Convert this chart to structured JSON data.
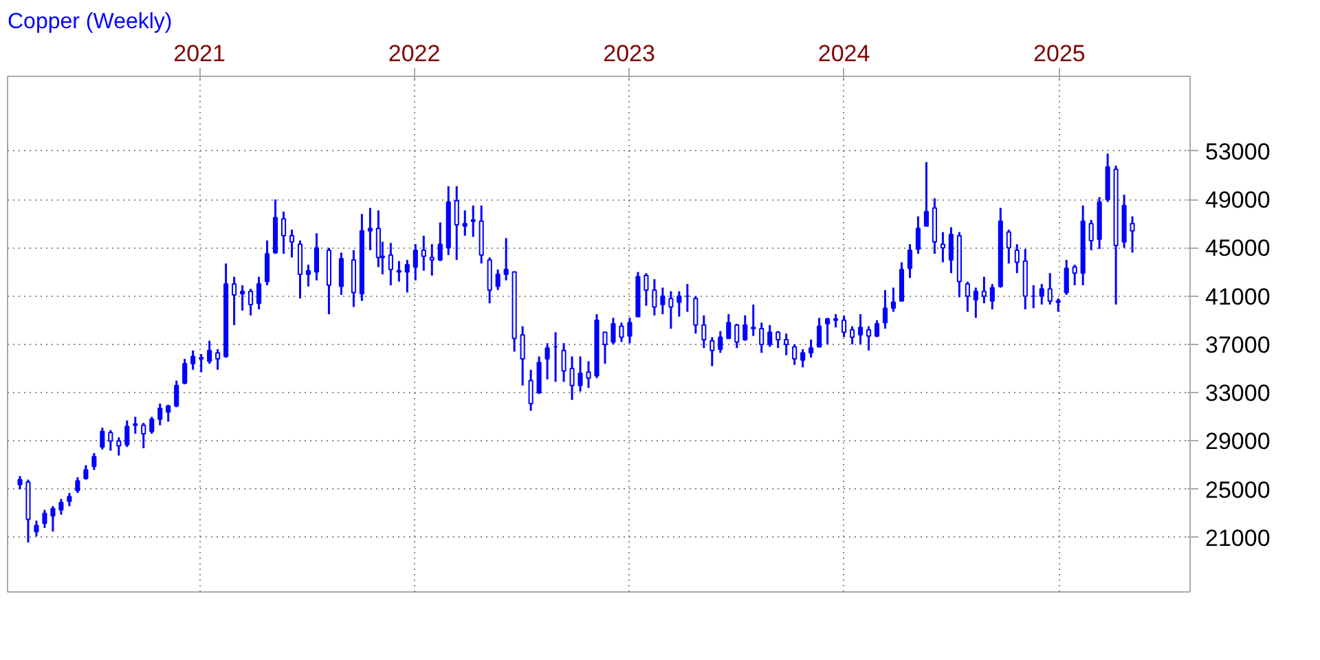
{
  "chart_data": {
    "type": "candlestick",
    "title": "Copper (Weekly)",
    "color": "#0000ff",
    "grid": true,
    "xlim": [
      "2020-02-10",
      "2025-08-11"
    ],
    "ylim": [
      16500,
      59200
    ],
    "xticks": [
      {
        "value": "2021-01-01",
        "label": "2021"
      },
      {
        "value": "2022-01-01",
        "label": "2022"
      },
      {
        "value": "2023-01-01",
        "label": "2023"
      },
      {
        "value": "2024-01-01",
        "label": "2024"
      },
      {
        "value": "2025-01-01",
        "label": "2025"
      }
    ],
    "yticks": [
      21000,
      25000,
      29000,
      33000,
      37000,
      41000,
      45000,
      49000,
      53000
    ],
    "x": [
      "2020-03-02",
      "2020-03-16",
      "2020-03-30",
      "2020-04-13",
      "2020-04-27",
      "2020-05-11",
      "2020-05-25",
      "2020-06-08",
      "2020-06-22",
      "2020-07-06",
      "2020-07-20",
      "2020-08-03",
      "2020-08-17",
      "2020-08-31",
      "2020-09-14",
      "2020-09-28",
      "2020-10-12",
      "2020-10-26",
      "2020-11-09",
      "2020-11-23",
      "2020-12-07",
      "2020-12-21",
      "2021-01-04",
      "2021-01-18",
      "2021-02-01",
      "2021-02-15",
      "2021-03-01",
      "2021-03-15",
      "2021-03-29",
      "2021-04-12",
      "2021-04-26",
      "2021-05-10",
      "2021-05-24",
      "2021-06-07",
      "2021-06-21",
      "2021-07-05",
      "2021-07-19",
      "2021-08-09",
      "2021-08-30",
      "2021-09-20",
      "2021-10-04",
      "2021-10-18",
      "2021-11-01",
      "2021-11-08",
      "2021-11-22",
      "2021-12-06",
      "2021-12-20",
      "2022-01-03",
      "2022-01-17",
      "2022-01-31",
      "2022-02-14",
      "2022-02-28",
      "2022-03-14",
      "2022-03-28",
      "2022-04-11",
      "2022-04-25",
      "2022-05-09",
      "2022-05-23",
      "2022-06-06",
      "2022-06-20",
      "2022-07-04",
      "2022-07-18",
      "2022-08-01",
      "2022-08-15",
      "2022-08-29",
      "2022-09-12",
      "2022-09-26",
      "2022-10-10",
      "2022-10-24",
      "2022-11-07",
      "2022-11-21",
      "2022-12-05",
      "2022-12-19",
      "2023-01-02",
      "2023-01-16",
      "2023-01-30",
      "2023-02-13",
      "2023-02-27",
      "2023-03-13",
      "2023-03-27",
      "2023-04-10",
      "2023-04-24",
      "2023-05-08",
      "2023-05-22",
      "2023-06-05",
      "2023-06-19",
      "2023-07-03",
      "2023-07-17",
      "2023-07-31",
      "2023-08-14",
      "2023-08-28",
      "2023-09-11",
      "2023-09-25",
      "2023-10-09",
      "2023-10-23",
      "2023-11-06",
      "2023-11-20",
      "2023-12-04",
      "2023-12-18",
      "2024-01-01",
      "2024-01-15",
      "2024-01-29",
      "2024-02-12",
      "2024-02-26",
      "2024-03-11",
      "2024-03-25",
      "2024-04-08",
      "2024-04-22",
      "2024-05-06",
      "2024-05-20",
      "2024-06-03",
      "2024-06-17",
      "2024-07-01",
      "2024-07-15",
      "2024-07-29",
      "2024-08-12",
      "2024-08-26",
      "2024-09-09",
      "2024-09-23",
      "2024-10-07",
      "2024-10-21",
      "2024-11-04",
      "2024-11-18",
      "2024-12-02",
      "2024-12-16",
      "2024-12-30",
      "2025-01-13",
      "2025-01-27",
      "2025-02-10",
      "2025-02-24",
      "2025-03-10",
      "2025-03-24",
      "2025-04-07",
      "2025-04-21",
      "2025-05-05"
    ],
    "ohlc": [
      [
        25400,
        26100,
        25000,
        25800
      ],
      [
        25600,
        25800,
        20600,
        22500
      ],
      [
        21500,
        22400,
        21100,
        22000
      ],
      [
        22200,
        23300,
        21800,
        23000
      ],
      [
        22800,
        23600,
        21500,
        23400
      ],
      [
        23300,
        24200,
        22900,
        23900
      ],
      [
        24000,
        24700,
        23600,
        24400
      ],
      [
        24900,
        26000,
        24700,
        25700
      ],
      [
        25900,
        27000,
        25800,
        26600
      ],
      [
        26900,
        28000,
        26600,
        27700
      ],
      [
        28500,
        30100,
        28300,
        29800
      ],
      [
        29700,
        29900,
        28200,
        29000
      ],
      [
        29000,
        29300,
        27800,
        28600
      ],
      [
        28700,
        30700,
        28500,
        30200
      ],
      [
        30300,
        31000,
        29600,
        30400
      ],
      [
        30300,
        30500,
        28400,
        29600
      ],
      [
        29800,
        31000,
        29600,
        30800
      ],
      [
        30800,
        32100,
        30300,
        31700
      ],
      [
        31400,
        32000,
        30600,
        31900
      ],
      [
        31900,
        34000,
        31800,
        33600
      ],
      [
        33800,
        35800,
        33700,
        35400
      ],
      [
        35400,
        36500,
        34900,
        36000
      ],
      [
        35900,
        36200,
        34700,
        35800
      ],
      [
        35600,
        37300,
        35400,
        36500
      ],
      [
        36300,
        36600,
        34900,
        35800
      ],
      [
        36000,
        43700,
        35900,
        42000
      ],
      [
        42000,
        42600,
        38600,
        41100
      ],
      [
        41200,
        41900,
        39800,
        41400
      ],
      [
        41400,
        41600,
        39400,
        40300
      ],
      [
        40400,
        42600,
        39900,
        42000
      ],
      [
        42200,
        45600,
        41900,
        44500
      ],
      [
        44600,
        49000,
        44500,
        47500
      ],
      [
        47400,
        48000,
        44500,
        46000
      ],
      [
        46000,
        46500,
        44200,
        45500
      ],
      [
        45300,
        45600,
        40800,
        42800
      ],
      [
        42800,
        43600,
        41800,
        43100
      ],
      [
        43000,
        46200,
        42300,
        45000
      ],
      [
        44800,
        45000,
        39500,
        41900
      ],
      [
        41800,
        44600,
        41100,
        44100
      ],
      [
        44000,
        44800,
        40100,
        41300
      ],
      [
        41200,
        47800,
        40600,
        46400
      ],
      [
        46400,
        48300,
        44800,
        46600
      ],
      [
        46600,
        48100,
        43400,
        44200
      ],
      [
        44200,
        45500,
        42800,
        44300
      ],
      [
        44400,
        45400,
        41900,
        43200
      ],
      [
        43100,
        43900,
        42200,
        43000
      ],
      [
        43000,
        44000,
        41300,
        43600
      ],
      [
        43400,
        45300,
        42300,
        44800
      ],
      [
        44800,
        46000,
        43100,
        44300
      ],
      [
        44200,
        45300,
        42700,
        44000
      ],
      [
        44000,
        47100,
        43900,
        45300
      ],
      [
        45000,
        50100,
        44400,
        48800
      ],
      [
        48900,
        50100,
        44000,
        46900
      ],
      [
        46800,
        48100,
        46000,
        47000
      ],
      [
        47200,
        48500,
        45900,
        47300
      ],
      [
        47200,
        48500,
        43700,
        44400
      ],
      [
        44000,
        44200,
        40400,
        41500
      ],
      [
        41800,
        43200,
        41500,
        42800
      ],
      [
        42800,
        45800,
        42300,
        43200
      ],
      [
        43000,
        43000,
        36400,
        37500
      ],
      [
        37800,
        38500,
        33600,
        35800
      ],
      [
        34000,
        34900,
        31500,
        32100
      ],
      [
        33000,
        36000,
        32900,
        35500
      ],
      [
        35800,
        37100,
        34100,
        36700
      ],
      [
        36800,
        38000,
        33900,
        36800
      ],
      [
        36500,
        37100,
        33900,
        34800
      ],
      [
        35000,
        36000,
        32400,
        33600
      ],
      [
        33600,
        36000,
        33100,
        34600
      ],
      [
        34700,
        35600,
        33400,
        34200
      ],
      [
        34400,
        39500,
        34200,
        39000
      ],
      [
        38000,
        38000,
        35400,
        37000
      ],
      [
        37200,
        39200,
        37000,
        38700
      ],
      [
        38500,
        38800,
        37200,
        37600
      ],
      [
        37700,
        39200,
        37100,
        38800
      ],
      [
        39300,
        43000,
        39300,
        42600
      ],
      [
        42700,
        42900,
        40200,
        41500
      ],
      [
        41500,
        42400,
        39400,
        40100
      ],
      [
        40300,
        41700,
        39500,
        41000
      ],
      [
        40800,
        41400,
        38300,
        40100
      ],
      [
        40500,
        41400,
        39300,
        41000
      ],
      [
        41000,
        42000,
        39700,
        41000
      ],
      [
        40800,
        41000,
        37900,
        38600
      ],
      [
        38600,
        39400,
        36700,
        37400
      ],
      [
        37300,
        37600,
        35200,
        36500
      ],
      [
        36600,
        38100,
        36300,
        37600
      ],
      [
        37500,
        39500,
        37500,
        38800
      ],
      [
        38600,
        38700,
        36700,
        37200
      ],
      [
        37400,
        39400,
        37300,
        38600
      ],
      [
        38400,
        40300,
        37700,
        38300
      ],
      [
        38300,
        38800,
        36300,
        37000
      ],
      [
        37000,
        38600,
        36800,
        38000
      ],
      [
        38000,
        38100,
        36700,
        37400
      ],
      [
        37400,
        37900,
        36100,
        37000
      ],
      [
        36800,
        37000,
        35300,
        35800
      ],
      [
        35700,
        36600,
        35100,
        36300
      ],
      [
        36300,
        37400,
        35900,
        36700
      ],
      [
        36800,
        39200,
        36800,
        38500
      ],
      [
        38700,
        39200,
        37000,
        39100
      ],
      [
        39100,
        39500,
        38400,
        39000
      ],
      [
        39000,
        39400,
        37600,
        38000
      ],
      [
        38200,
        38500,
        37000,
        37600
      ],
      [
        37800,
        39500,
        37000,
        38400
      ],
      [
        38200,
        38500,
        36500,
        37700
      ],
      [
        37700,
        39000,
        37600,
        38700
      ],
      [
        38800,
        41500,
        38300,
        40000
      ],
      [
        40000,
        41700,
        39700,
        40500
      ],
      [
        40600,
        43800,
        40600,
        43200
      ],
      [
        43300,
        45300,
        42500,
        44800
      ],
      [
        44900,
        47600,
        44500,
        46600
      ],
      [
        46800,
        52100,
        46800,
        48000
      ],
      [
        48300,
        49100,
        44500,
        45500
      ],
      [
        45300,
        46300,
        43800,
        45000
      ],
      [
        44000,
        46700,
        42900,
        46100
      ],
      [
        46000,
        46300,
        40900,
        42200
      ],
      [
        42000,
        42200,
        39700,
        41000
      ],
      [
        40700,
        41700,
        39200,
        41400
      ],
      [
        41400,
        42600,
        40400,
        41000
      ],
      [
        40600,
        42000,
        39900,
        41700
      ],
      [
        41800,
        48300,
        41700,
        47200
      ],
      [
        46300,
        46500,
        43700,
        45000
      ],
      [
        44800,
        45300,
        42900,
        43800
      ],
      [
        43900,
        44900,
        39900,
        41000
      ],
      [
        41000,
        41900,
        40000,
        41000
      ],
      [
        41000,
        42000,
        40300,
        41600
      ],
      [
        41600,
        42900,
        40300,
        40600
      ],
      [
        40600,
        40800,
        39700,
        40500
      ],
      [
        41300,
        44000,
        41100,
        43300
      ],
      [
        43400,
        43600,
        41900,
        42900
      ],
      [
        42900,
        48500,
        41900,
        47200
      ],
      [
        47000,
        47300,
        44800,
        45600
      ],
      [
        45700,
        49200,
        44900,
        48800
      ],
      [
        49000,
        52800,
        48800,
        51700
      ],
      [
        51500,
        51800,
        40300,
        45200
      ],
      [
        45500,
        49400,
        45000,
        48500
      ],
      [
        47000,
        47600,
        44600,
        46400
      ]
    ]
  }
}
